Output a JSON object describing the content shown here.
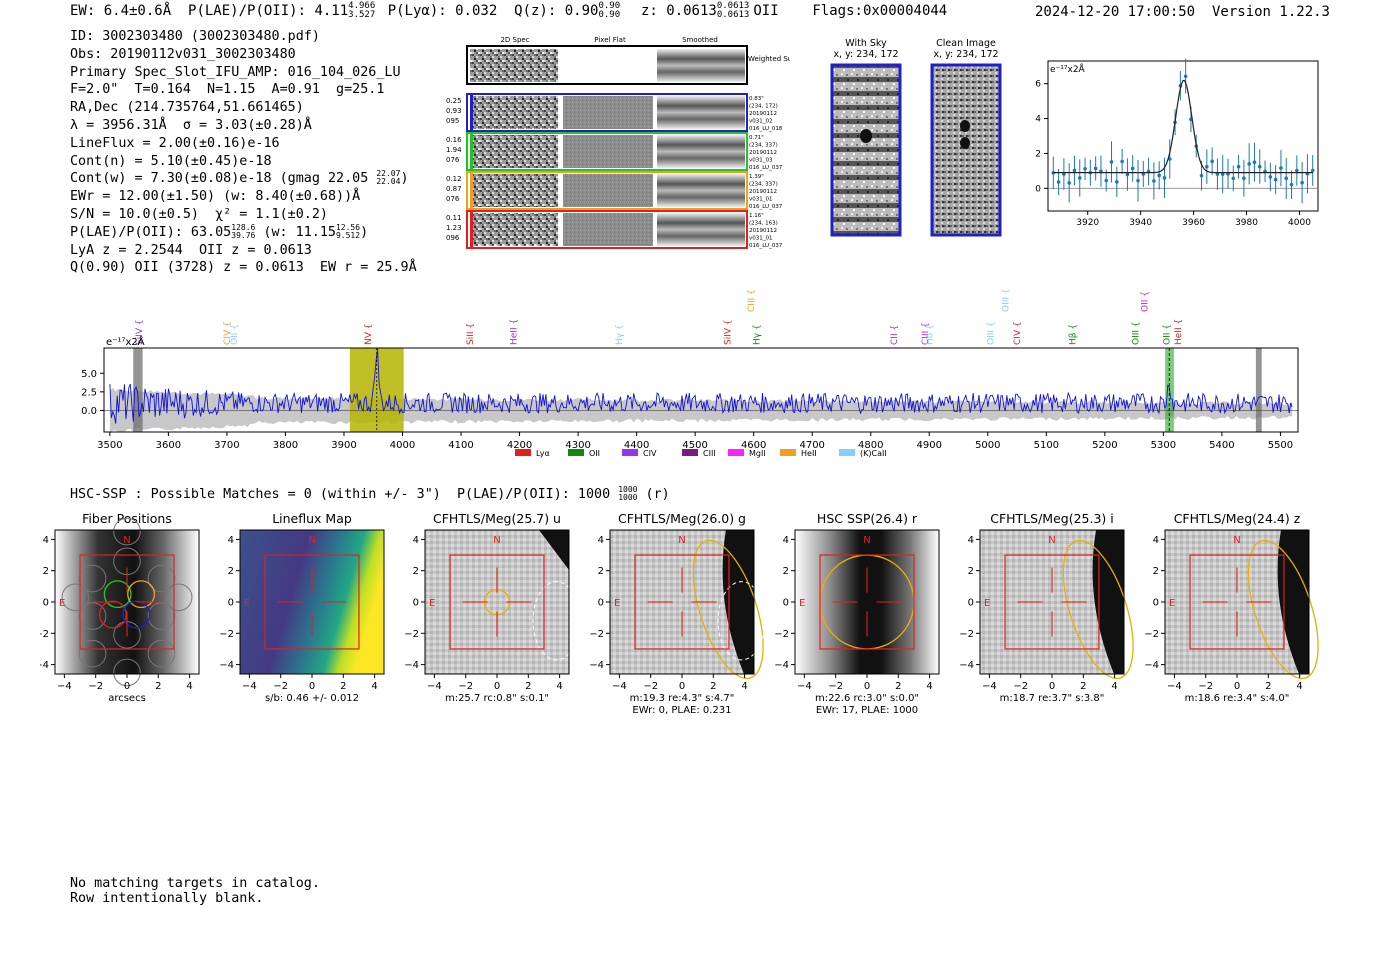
{
  "header": {
    "ew": "EW: 6.4±0.6Å",
    "plae_label": "P(LAE)/P(OII): 4.11",
    "plae_hi": "4.966",
    "plae_lo": "3.527",
    "plya": "P(Lyα): 0.032",
    "qz_label": "Q(z): 0.90",
    "qz_hi": "0.90",
    "qz_lo": "0.90",
    "z_label": "z: 0.0613",
    "z_hi": "0.0613",
    "z_lo": "0.0613",
    "z_line": "OII",
    "flags": "Flags:0x00004044",
    "datetime": "2024-12-20 17:00:50",
    "version": "Version 1.22.3"
  },
  "info": {
    "id": "ID: 3002303480 (3002303480.pdf)",
    "obs": "Obs: 20190112v031_3002303480",
    "primary": "Primary Spec_Slot_IFU_AMP: 016_104_026_LU",
    "fibers": "F=2.0\"  T=0.164  N=1.15  A=0.91  g=25.1",
    "radec": "RA,Dec (214.735764,51.661465)",
    "lambda": "λ = 3956.31Å  σ = 3.03(±0.28)Å",
    "lineflux": "LineFlux = 2.00(±0.16)e-16",
    "contn": "Cont(n) = 5.10(±0.45)e-18",
    "contw": "Cont(w) = 7.30(±0.08)e-18 (gmag 22.05",
    "contw_hi": "22.07",
    "contw_lo": "22.04",
    "ewr": "EWr = 12.00(±1.50) (w: 8.40(±0.68))Å",
    "sn": "S/N = 10.0(±0.5)  χ² = 1.1(±0.2)",
    "plae": "P(LAE)/P(OII): 63.05",
    "plae_hi": "128.6",
    "plae_lo": "39.76",
    "plae_w": "(w: 11.15",
    "plae_w_hi": "12.56",
    "plae_w_lo": "9.512",
    "lya": "LyA z = 2.2544  OII z = 0.0613",
    "q": "Q(0.90) OII (3728) z = 0.0613  EW r = 25.9Å"
  },
  "cutouts": {
    "col_2d": "2D Spec",
    "col_flat": "Pixel Flat",
    "col_smooth": "Smoothed",
    "weighted_label": "Weighted Sum",
    "rows": [
      {
        "left": [
          "0.25",
          "0.93",
          "095"
        ],
        "right": [
          "0.83\"",
          "(234, 172)",
          "20190112",
          "v031_02",
          "016_LU_018"
        ],
        "color": "#1f1fcc"
      },
      {
        "left": [
          "0.16",
          "1.94",
          "076"
        ],
        "right": [
          "0.71\"",
          "(234, 337)",
          "20190112",
          "v031_03",
          "016_LU_037"
        ],
        "color": "#22c422"
      },
      {
        "left": [
          "0.12",
          "0.87",
          "076"
        ],
        "right": [
          "1.39\"",
          "(234, 337)",
          "20190112",
          "v031_01",
          "016_LU_037"
        ],
        "color": "#f0a020"
      },
      {
        "left": [
          "0.11",
          "1.23",
          "096"
        ],
        "right": [
          "1.16\"",
          "(234, 163)",
          "20190112",
          "v031_01",
          "016_LU_037"
        ],
        "color": "#e02020"
      }
    ],
    "with_sky_title": "With Sky",
    "with_sky_xy": "x, y: 234, 172",
    "clean_title": "Clean Image",
    "clean_xy": "x, y: 234, 172"
  },
  "zoom_plot": {
    "ylabel": "e⁻¹⁷x2Å",
    "xticks": [
      3920,
      3940,
      3960,
      3980,
      4000
    ],
    "yticks": [
      0,
      2,
      4,
      6
    ],
    "xlim": [
      3905,
      4007
    ],
    "ylim": [
      -1.3,
      7.3
    ]
  },
  "spectrum": {
    "ylabel": "e⁻¹⁷x2Å",
    "xticks": [
      3500,
      3600,
      3700,
      3800,
      3900,
      4000,
      4100,
      4200,
      4300,
      4400,
      4500,
      4600,
      4700,
      4800,
      4900,
      5000,
      5100,
      5200,
      5300,
      5400,
      5500
    ],
    "yticks": [
      "5.0",
      "2.5",
      "0.0"
    ],
    "xlim": [
      3490,
      5530
    ],
    "ylim": [
      -2.9,
      8.4
    ],
    "lines": [
      {
        "name": "SiIV",
        "w": 3550,
        "color": "#9933cc",
        "y": "high"
      },
      {
        "name": "CIV",
        "w": 3700,
        "color": "#f0a020",
        "y": "high"
      },
      {
        "name": "OII",
        "w": 3712,
        "color": "#87cefa",
        "y": "high"
      },
      {
        "name": "NV",
        "w": 3941,
        "color": "#e02020",
        "y": "mid"
      },
      {
        "name": "SiII",
        "w": 4115,
        "color": "#e02020",
        "y": "mid"
      },
      {
        "name": "HeII",
        "w": 4190,
        "color": "#9933cc",
        "y": "mid"
      },
      {
        "name": "Hγ",
        "w": 4370,
        "color": "#87cefa",
        "y": "mid"
      },
      {
        "name": "SiIV",
        "w": 4555,
        "color": "#e02020",
        "y": "mid"
      },
      {
        "name": "CIII",
        "w": 4595,
        "color": "#f0a020",
        "y": "top"
      },
      {
        "name": "Hγ",
        "w": 4605,
        "color": "#118811",
        "y": "mid"
      },
      {
        "name": "CII",
        "w": 4840,
        "color": "#9933cc",
        "y": "mid"
      },
      {
        "name": "CIII",
        "w": 4893,
        "color": "#cc22cc",
        "y": "mid"
      },
      {
        "name": "Hδ",
        "w": 4900,
        "color": "#87cefa",
        "y": "mid"
      },
      {
        "name": "OIII",
        "w": 5005,
        "color": "#87cefa",
        "y": "mid"
      },
      {
        "name": "OIII",
        "w": 5030,
        "color": "#87cefa",
        "y": "top"
      },
      {
        "name": "CIV",
        "w": 5050,
        "color": "#e02020",
        "y": "mid"
      },
      {
        "name": "Hβ",
        "w": 5145,
        "color": "#118811",
        "y": "mid"
      },
      {
        "name": "OIII",
        "w": 5252,
        "color": "#118811",
        "y": "mid"
      },
      {
        "name": "OII",
        "w": 5268,
        "color": "#cc22cc",
        "y": "top"
      },
      {
        "name": "OII",
        "w": 5305,
        "color": "#118811",
        "y": "mid"
      },
      {
        "name": "HeII",
        "w": 5325,
        "color": "#e02020",
        "y": "mid"
      }
    ],
    "legend": [
      {
        "label": "Lyα",
        "color": "#e02020"
      },
      {
        "label": "OII",
        "color": "#118811"
      },
      {
        "label": "CIV",
        "color": "#9933ee"
      },
      {
        "label": "CIII",
        "color": "#7a1a7a"
      },
      {
        "label": "MgII",
        "color": "#ff22ff"
      },
      {
        "label": "HeII",
        "color": "#f0a020"
      },
      {
        "label": "(K)CaII",
        "color": "#87cefa"
      }
    ]
  },
  "hsc": {
    "text": "HSC-SSP : Possible Matches = 0 (within +/- 3\")  P(LAE)/P(OII): 1000",
    "hi": "1000",
    "lo": "1000",
    "suffix": "(r)"
  },
  "thumbs": [
    {
      "title": "Fiber Positions",
      "cap1": "arcsecs",
      "cap2": ""
    },
    {
      "title": "Lineflux Map",
      "cap1": "s/b: 0.46 +/- 0.012",
      "cap2": ""
    },
    {
      "title": "CFHTLS/Meg(25.7) u",
      "cap1": "m:25.7 rc:0.8\"  s:0.1\"",
      "cap2": ""
    },
    {
      "title": "CFHTLS/Meg(26.0) g",
      "cap1": "m:19.3  re:4.3\"  s:4.7\"",
      "cap2": "EWr: 0, PLAE: 0.231"
    },
    {
      "title": "HSC SSP(26.4) r",
      "cap1": "m:22.6 rc:3.0\"  s:0.0\"",
      "cap2": "EWr: 17, PLAE: 1000"
    },
    {
      "title": "CFHTLS/Meg(25.3) i",
      "cap1": "m:18.7  re:3.7\"  s:3.8\"",
      "cap2": ""
    },
    {
      "title": "CFHTLS/Meg(24.4) z",
      "cap1": "m:18.6  re:3.4\"  s:4.0\"",
      "cap2": ""
    }
  ],
  "thumb_axes": {
    "ticks": [
      "−4",
      "−2",
      "0",
      "2",
      "4"
    ],
    "n": "N",
    "e": "E"
  },
  "footer": {
    "line1": "No matching targets in catalog.",
    "line2": "Row intentionally blank."
  }
}
